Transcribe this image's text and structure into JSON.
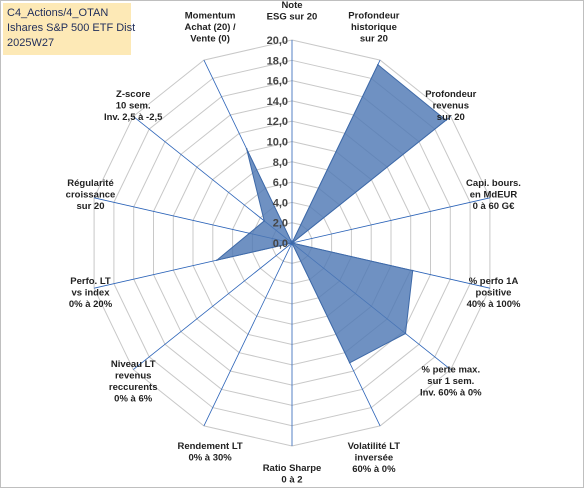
{
  "title_lines": [
    "C4_Actions/4_OTAN",
    "Ishares S&P 500 ETF Dist",
    "2025W27"
  ],
  "chart_data": {
    "type": "radar",
    "title": "C4_Actions/4_OTAN Ishares S&P 500 ETF Dist 2025W27",
    "rlim": [
      0,
      20
    ],
    "tick_step": 2,
    "tick_labels": [
      "0,0",
      "2,0",
      "4,0",
      "6,0",
      "8,0",
      "10,0",
      "12,0",
      "14,0",
      "16,0",
      "18,0",
      "20,0"
    ],
    "grid": true,
    "axes": [
      {
        "label": [
          "Note",
          "ESG sur 20"
        ],
        "value": 0
      },
      {
        "label": [
          "Profondeur",
          "historique",
          "sur 20"
        ],
        "value": 19.5
      },
      {
        "label": [
          "Profondeur",
          "revenus",
          "sur 20"
        ],
        "value": 19.4
      },
      {
        "label": [
          "Capi. bours.",
          "en MdEUR",
          "0 à 60 G€"
        ],
        "value": 0
      },
      {
        "label": [
          "% perfo 1A",
          "positive",
          "40% à 100%"
        ],
        "value": 12.2
      },
      {
        "label": [
          "% perte max.",
          "sur 1 sem.",
          "Inv. 60% à 0%"
        ],
        "value": 14.3
      },
      {
        "label": [
          "Volatilité LT",
          "inversée",
          "60% à 0%"
        ],
        "value": 13.1
      },
      {
        "label": [
          "Ratio Sharpe",
          "0 à 2"
        ],
        "value": 0
      },
      {
        "label": [
          "Rendement LT",
          "0% à 30%"
        ],
        "value": 0
      },
      {
        "label": [
          "Niveau LT",
          "revenus",
          "reccurents",
          "0% à 6%"
        ],
        "value": 0
      },
      {
        "label": [
          "Perfo. LT",
          "vs index",
          "0% à 20%"
        ],
        "value": 7.6
      },
      {
        "label": [
          "Régularité",
          "croissance",
          "sur 20"
        ],
        "value": 4.3
      },
      {
        "label": [
          "Z-score",
          "10 sem.",
          "Inv. 2,5 à -2,5"
        ],
        "value": 3.5
      },
      {
        "label": [
          "Momentum",
          "Achat (20) /",
          "Vente (0)"
        ],
        "value": 10.3
      }
    ],
    "fill_color": "#4f79b5",
    "fill_opacity": 0.82,
    "line_color": "#3f6aa8",
    "grid_color": "#c8c8c8",
    "spoke_color": "#2b63b8"
  }
}
